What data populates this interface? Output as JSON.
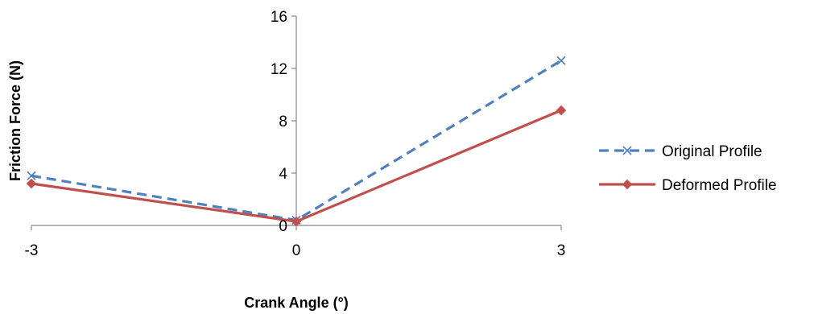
{
  "chart_data": {
    "type": "line",
    "title": "",
    "xlabel": "Crank Angle (°)",
    "ylabel": "Friction Force (N)",
    "x": [
      -3,
      0,
      3
    ],
    "x_tick_labels": [
      "-3",
      "0",
      "3"
    ],
    "ylim": [
      0,
      16
    ],
    "y_ticks": [
      0,
      4,
      8,
      12,
      16
    ],
    "y_tick_labels": [
      "0",
      "4",
      "8",
      "12",
      "16"
    ],
    "grid": false,
    "legend_position": "right",
    "series": [
      {
        "name": "Original Profile",
        "values": [
          3.8,
          0.4,
          12.6
        ],
        "color": "#4F81BD",
        "line_style": "dashed",
        "marker": "x"
      },
      {
        "name": "Deformed Profile",
        "values": [
          3.2,
          0.3,
          8.8
        ],
        "color": "#C0504D",
        "line_style": "solid",
        "marker": "diamond"
      }
    ]
  }
}
